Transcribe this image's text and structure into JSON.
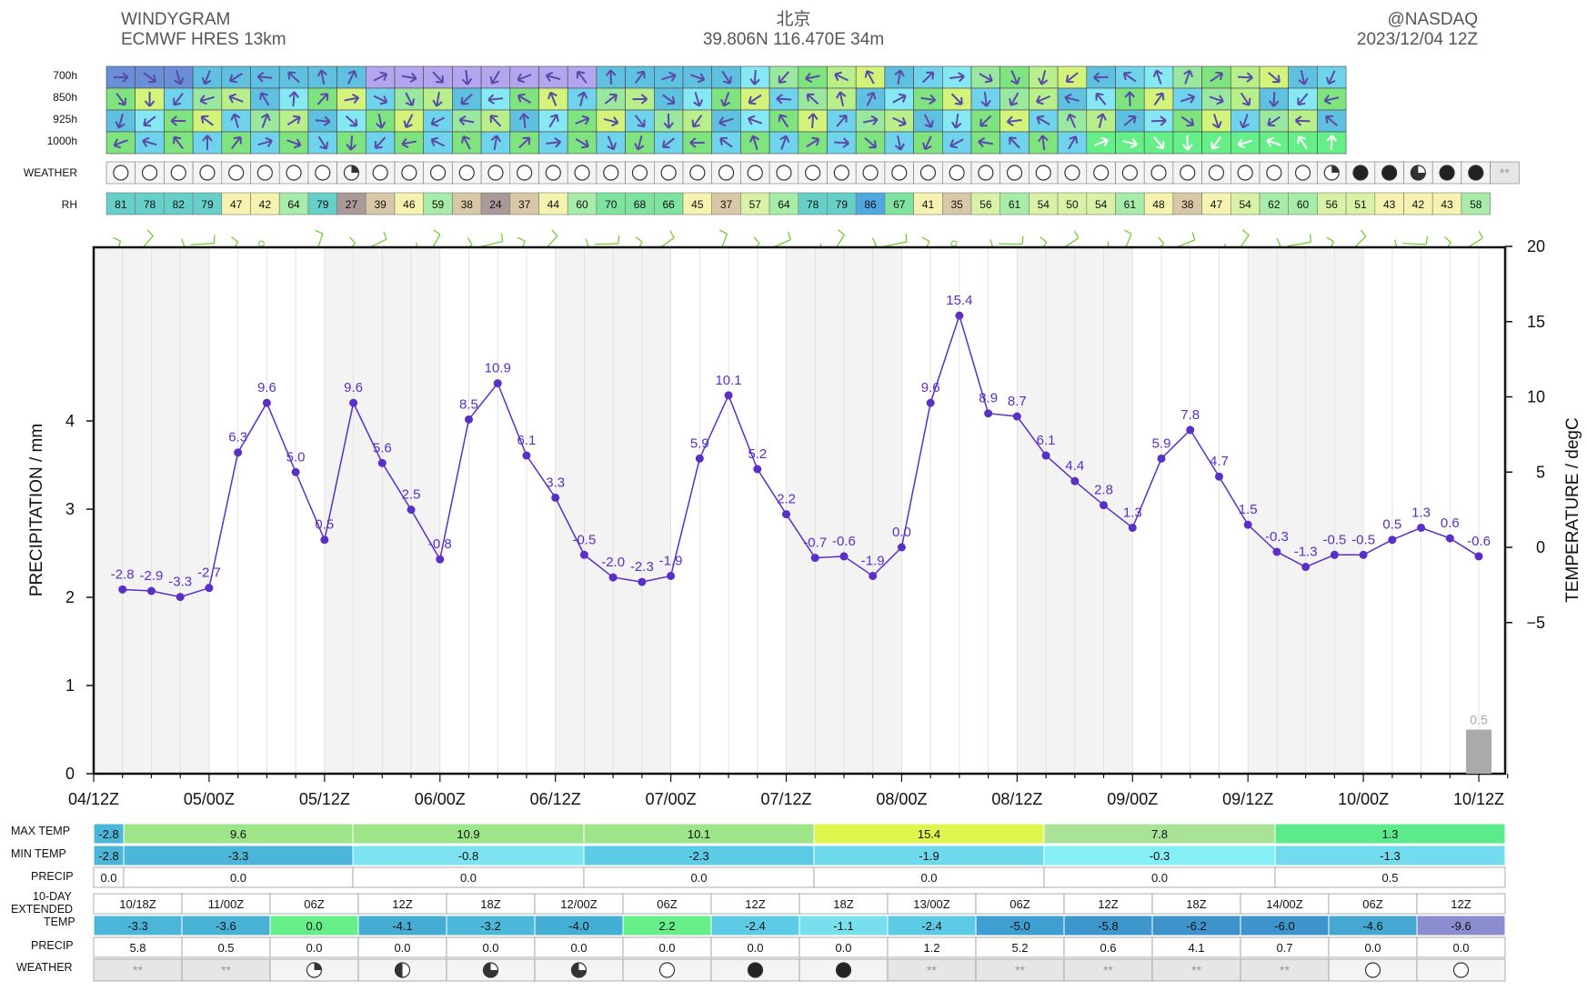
{
  "header": {
    "title": "WINDYGRAM",
    "model": "ECMWF HRES 13km",
    "place": "北京",
    "coords": "39.806N 116.470E 34m",
    "credit": "@NASDAQ",
    "run": "2023/12/04 12Z"
  },
  "levels": [
    "700h",
    "850h",
    "925h",
    "1000h"
  ],
  "labels": {
    "weather": "WEATHER",
    "rh": "RH",
    "max_temp": "MAX TEMP",
    "min_temp": "MIN TEMP",
    "precip": "PRECIP",
    "ext1": "10-DAY",
    "ext2": "EXTENDED",
    "ext_temp": "TEMP",
    "ext_precip": "PRECIP",
    "ext_weather": "WEATHER"
  },
  "weather_icons": [
    "clear",
    "clear",
    "clear",
    "clear",
    "clear",
    "clear",
    "clear",
    "clear",
    "partly-cloudy",
    "clear",
    "clear",
    "clear",
    "clear",
    "clear",
    "clear",
    "clear",
    "clear",
    "clear",
    "clear",
    "clear",
    "clear",
    "clear",
    "clear",
    "clear",
    "clear",
    "clear",
    "clear",
    "clear",
    "clear",
    "clear",
    "clear",
    "clear",
    "clear",
    "clear",
    "clear",
    "clear",
    "clear",
    "clear",
    "clear",
    "clear",
    "clear",
    "clear",
    "partly-cloudy",
    "overcast",
    "overcast",
    "mostly-cloudy",
    "overcast",
    "overcast",
    "snow"
  ],
  "rh": [
    81,
    78,
    82,
    79,
    47,
    42,
    64,
    79,
    27,
    39,
    46,
    59,
    38,
    24,
    37,
    44,
    60,
    70,
    68,
    66,
    45,
    37,
    57,
    64,
    78,
    79,
    86,
    67,
    41,
    35,
    56,
    61,
    54,
    50,
    54,
    61,
    48,
    38,
    47,
    54,
    62,
    60,
    56,
    51,
    43,
    42,
    43,
    58
  ],
  "colors": {
    "line": "#5a2fc8",
    "frame": "#111111",
    "shade": "#eeeeee",
    "bar": "#aaaaaa"
  },
  "chart_data": {
    "type": "line",
    "title": "",
    "xlabel": "",
    "ylabel": "PRECIPITATION / mm",
    "y2label": "TEMPERATURE / degC",
    "ylim": [
      0,
      6
    ],
    "y2lim": [
      -15,
      20
    ],
    "yticks": [
      0,
      1,
      2,
      3,
      4
    ],
    "y2ticks": [
      -5,
      0,
      5,
      10,
      15,
      20
    ],
    "xticks": [
      "04/12Z",
      "05/00Z",
      "05/12Z",
      "06/00Z",
      "06/12Z",
      "07/00Z",
      "07/12Z",
      "08/00Z",
      "08/12Z",
      "09/00Z",
      "09/12Z",
      "10/00Z",
      "10/12Z"
    ],
    "temperature": [
      -2.8,
      -2.9,
      -3.3,
      -2.7,
      6.3,
      9.6,
      5.0,
      0.5,
      9.6,
      5.6,
      2.5,
      -0.8,
      8.5,
      10.9,
      6.1,
      3.3,
      -0.5,
      -2.0,
      -2.3,
      -1.9,
      5.9,
      10.1,
      5.2,
      2.2,
      -0.7,
      -0.6,
      -1.9,
      0.0,
      9.6,
      15.4,
      8.9,
      8.7,
      6.1,
      4.4,
      2.8,
      1.3,
      5.9,
      7.8,
      4.7,
      1.5,
      -0.3,
      -1.3,
      -0.5,
      -0.5,
      0.5,
      1.3,
      0.6,
      -0.6
    ],
    "temperature_labels": [
      "-2.8",
      "-2.9",
      "-3.3",
      "-2.7",
      "6.3",
      "9.6",
      "5.0",
      "0.5",
      "9.6",
      "5.6",
      "2.5",
      "-0.8",
      "8.5",
      "10.9",
      "6.1",
      "3.3",
      "-0.5",
      "-2.0",
      "-2.3",
      "-1.9",
      "5.9",
      "10.1",
      "5.2",
      "2.2",
      "-0.7",
      "-0.6",
      "-1.9",
      "0.0",
      "9.6",
      "15.4",
      "8.9",
      "8.7",
      "6.1",
      "4.4",
      "2.8",
      "1.3",
      "5.9",
      "7.8",
      "4.7",
      "1.5",
      "-0.3",
      "-1.3",
      "-0.5",
      "-0.5",
      "0.5",
      "1.3",
      "0.6",
      "-0.6"
    ],
    "precipitation": [
      {
        "x": "10/12Z",
        "value": 0.5,
        "label": "0.5"
      }
    ]
  },
  "daily": {
    "max": [
      {
        "v": "-2.8",
        "c": "#4cb6d8"
      },
      {
        "v": "9.6",
        "c": "#9ee58a"
      },
      {
        "v": "10.9",
        "c": "#9ee58a"
      },
      {
        "v": "10.1",
        "c": "#9ee58a"
      },
      {
        "v": "15.4",
        "c": "#e0f54e"
      },
      {
        "v": "7.8",
        "c": "#a8e398"
      },
      {
        "v": "1.3",
        "c": "#5ceb8a"
      }
    ],
    "min": [
      {
        "v": "-2.8",
        "c": "#4cb6d8"
      },
      {
        "v": "-3.3",
        "c": "#4cb6d8"
      },
      {
        "v": "-0.8",
        "c": "#7de3f0"
      },
      {
        "v": "-2.3",
        "c": "#5ccbe6"
      },
      {
        "v": "-1.9",
        "c": "#6fd9ec"
      },
      {
        "v": "-0.3",
        "c": "#86eef7"
      },
      {
        "v": "-1.3",
        "c": "#72dcee"
      }
    ],
    "precip": [
      "0.0",
      "0.0",
      "0.0",
      "0.0",
      "0.0",
      "0.0",
      "0.5"
    ]
  },
  "extended": {
    "times": [
      "10/18Z",
      "11/00Z",
      "06Z",
      "12Z",
      "18Z",
      "12/00Z",
      "06Z",
      "12Z",
      "18Z",
      "13/00Z",
      "06Z",
      "12Z",
      "18Z",
      "14/00Z",
      "06Z",
      "12Z"
    ],
    "temp": [
      "-3.3",
      "-3.6",
      "0.0",
      "-4.1",
      "-3.2",
      "-4.0",
      "2.2",
      "-2.4",
      "-1.1",
      "-2.4",
      "-5.0",
      "-5.8",
      "-6.2",
      "-6.0",
      "-4.6",
      "-9.6"
    ],
    "temp_colors": [
      "#4cb6d8",
      "#48b1d6",
      "#66ee88",
      "#45acd4",
      "#4db8d9",
      "#45aed5",
      "#66ee88",
      "#5dcbe6",
      "#78dfee",
      "#5dcbe6",
      "#3f9fd0",
      "#3e97cc",
      "#3d93ca",
      "#3d95cb",
      "#44a8d3",
      "#8c8cd0"
    ],
    "precip": [
      "5.8",
      "0.5",
      "0.0",
      "0.0",
      "0.0",
      "0.0",
      "0.0",
      "0.0",
      "0.0",
      "1.2",
      "5.2",
      "0.6",
      "4.1",
      "0.7",
      "0.0",
      "0.0"
    ],
    "weather": [
      "snow",
      "snow",
      "partly-cloudy",
      "half-cloudy",
      "mostly-cloudy",
      "mostly-cloudy",
      "clear",
      "overcast",
      "overcast",
      "snow",
      "snow",
      "snow",
      "snow",
      "snow",
      "clear",
      "clear"
    ]
  }
}
